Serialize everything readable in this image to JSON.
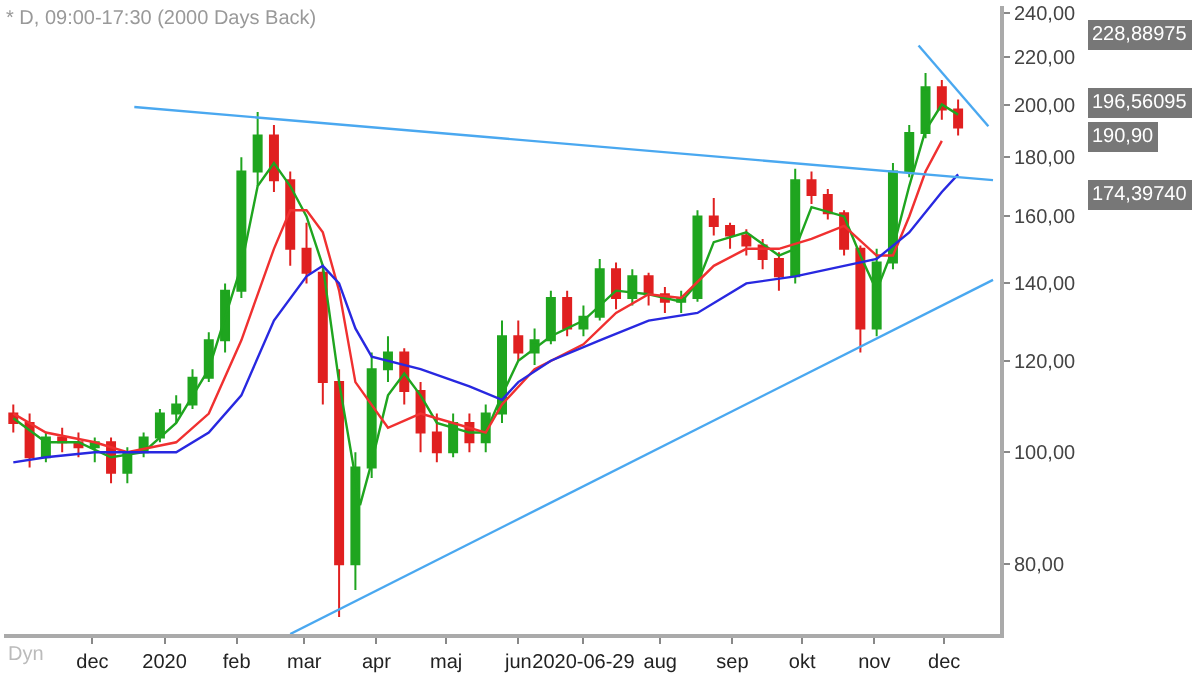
{
  "chart_data": {
    "type": "candlestick",
    "title": "* D, 09:00-17:30 (2000 Days Back)",
    "x": [
      "2019-10-28",
      "2019-11-04",
      "2019-11-11",
      "2019-11-18",
      "2019-11-25",
      "2019-12-02",
      "2019-12-09",
      "2019-12-16",
      "2019-12-23",
      "2019-12-30",
      "2020-01-06",
      "2020-01-13",
      "2020-01-20",
      "2020-01-27",
      "2020-02-03",
      "2020-02-10",
      "2020-02-17",
      "2020-02-24",
      "2020-03-02",
      "2020-03-09",
      "2020-03-16",
      "2020-03-23",
      "2020-03-30",
      "2020-04-06",
      "2020-04-13",
      "2020-04-20",
      "2020-04-27",
      "2020-05-04",
      "2020-05-11",
      "2020-05-18",
      "2020-05-25",
      "2020-06-01",
      "2020-06-08",
      "2020-06-15",
      "2020-06-22",
      "2020-06-29",
      "2020-07-06",
      "2020-07-13",
      "2020-07-20",
      "2020-07-27",
      "2020-08-03",
      "2020-08-10",
      "2020-08-17",
      "2020-08-24",
      "2020-08-31",
      "2020-09-07",
      "2020-09-14",
      "2020-09-21",
      "2020-09-28",
      "2020-10-05",
      "2020-10-12",
      "2020-10-19",
      "2020-10-26",
      "2020-11-02",
      "2020-11-09",
      "2020-11-16",
      "2020-11-23",
      "2020-11-30",
      "2020-12-07"
    ],
    "ohlc": [
      [
        108,
        110,
        104,
        106
      ],
      [
        106,
        108,
        97,
        99
      ],
      [
        99,
        104,
        98,
        103
      ],
      [
        103,
        105,
        100,
        102
      ],
      [
        102,
        104,
        99,
        101
      ],
      [
        101,
        103,
        98,
        102
      ],
      [
        102,
        103,
        94,
        96
      ],
      [
        96,
        101,
        94,
        100
      ],
      [
        100,
        104,
        99,
        103
      ],
      [
        103,
        109,
        102,
        108
      ],
      [
        108,
        112,
        106,
        110
      ],
      [
        110,
        118,
        109,
        116
      ],
      [
        116,
        127,
        115,
        125
      ],
      [
        125,
        140,
        122,
        138
      ],
      [
        138,
        180,
        136,
        175
      ],
      [
        175,
        197,
        170,
        188
      ],
      [
        188,
        192,
        168,
        172
      ],
      [
        172,
        175,
        145,
        150
      ],
      [
        150,
        158,
        140,
        143
      ],
      [
        143,
        145,
        110,
        115
      ],
      [
        115,
        118,
        72,
        80
      ],
      [
        80,
        100,
        76,
        97
      ],
      [
        97,
        122,
        95,
        118
      ],
      [
        118,
        126,
        115,
        122
      ],
      [
        122,
        123,
        110,
        113
      ],
      [
        113,
        115,
        100,
        104
      ],
      [
        104,
        108,
        98,
        100
      ],
      [
        100,
        108,
        99,
        106
      ],
      [
        106,
        108,
        100,
        102
      ],
      [
        102,
        110,
        100,
        108
      ],
      [
        108,
        130,
        106,
        126
      ],
      [
        126,
        130,
        120,
        122
      ],
      [
        122,
        128,
        119,
        125
      ],
      [
        125,
        138,
        124,
        136
      ],
      [
        136,
        138,
        126,
        128
      ],
      [
        128,
        134,
        126,
        131
      ],
      [
        131,
        147,
        130,
        144
      ],
      [
        144,
        146,
        133,
        136
      ],
      [
        136,
        144,
        134,
        142
      ],
      [
        142,
        143,
        134,
        137
      ],
      [
        137,
        139,
        132,
        135
      ],
      [
        135,
        138,
        132,
        136
      ],
      [
        136,
        162,
        135,
        160
      ],
      [
        160,
        166,
        154,
        157
      ],
      [
        157,
        158,
        150,
        154
      ],
      [
        154,
        156,
        148,
        151
      ],
      [
        151,
        153,
        144,
        147
      ],
      [
        147,
        149,
        138,
        142
      ],
      [
        142,
        176,
        140,
        172
      ],
      [
        172,
        175,
        164,
        167
      ],
      [
        167,
        169,
        159,
        161
      ],
      [
        161,
        162,
        148,
        150
      ],
      [
        150,
        151,
        122,
        128
      ],
      [
        128,
        150,
        126,
        146
      ],
      [
        146,
        178,
        144,
        175
      ],
      [
        175,
        192,
        173,
        189
      ],
      [
        189,
        213,
        187,
        207
      ],
      [
        207,
        210,
        194,
        198
      ],
      [
        198,
        202,
        188,
        191
      ]
    ],
    "colors": [
      "#e02020",
      "#e02020",
      "#1fa51f",
      "#e02020",
      "#e02020",
      "#1fa51f",
      "#e02020",
      "#1fa51f",
      "#1fa51f",
      "#1fa51f",
      "#1fa51f",
      "#1fa51f",
      "#1fa51f",
      "#1fa51f",
      "#1fa51f",
      "#1fa51f",
      "#e02020",
      "#e02020",
      "#e02020",
      "#e02020",
      "#e02020",
      "#1fa51f",
      "#1fa51f",
      "#1fa51f",
      "#e02020",
      "#e02020",
      "#e02020",
      "#1fa51f",
      "#e02020",
      "#1fa51f",
      "#1fa51f",
      "#e02020",
      "#1fa51f",
      "#1fa51f",
      "#e02020",
      "#1fa51f",
      "#1fa51f",
      "#e02020",
      "#1fa51f",
      "#e02020",
      "#e02020",
      "#1fa51f",
      "#1fa51f",
      "#e02020",
      "#e02020",
      "#e02020",
      "#e02020",
      "#e02020",
      "#1fa51f",
      "#e02020",
      "#e02020",
      "#e02020",
      "#e02020",
      "#1fa51f",
      "#1fa51f",
      "#1fa51f",
      "#1fa51f",
      "#e02020",
      "#e02020"
    ],
    "series": [
      {
        "type": "line",
        "color": "#1fa51f",
        "x": [
          "2019-10-28",
          "2019-11-11",
          "2019-11-25",
          "2019-12-09",
          "2019-12-23",
          "2020-01-06",
          "2020-01-20",
          "2020-02-03",
          "2020-02-10",
          "2020-02-17",
          "2020-02-24",
          "2020-03-02",
          "2020-03-09",
          "2020-03-16",
          "2020-03-25",
          "2020-03-30",
          "2020-04-06",
          "2020-04-13",
          "2020-04-20",
          "2020-04-27",
          "2020-05-11",
          "2020-05-18",
          "2020-05-25",
          "2020-06-01",
          "2020-06-15",
          "2020-06-29",
          "2020-07-13",
          "2020-07-27",
          "2020-08-10",
          "2020-08-17",
          "2020-08-24",
          "2020-09-07",
          "2020-09-21",
          "2020-09-28",
          "2020-10-05",
          "2020-10-19",
          "2020-10-26",
          "2020-11-02",
          "2020-11-09",
          "2020-11-16",
          "2020-11-23",
          "2020-11-30",
          "2020-12-07"
        ],
        "values": [
          107,
          102,
          102,
          99,
          100,
          106,
          118,
          145,
          170,
          178,
          170,
          160,
          145,
          115,
          90,
          98,
          112,
          117,
          112,
          106,
          104,
          104,
          112,
          120,
          126,
          130,
          138,
          137,
          135,
          140,
          152,
          155,
          148,
          150,
          163,
          160,
          148,
          138,
          150,
          170,
          190,
          200,
          196
        ]
      },
      {
        "type": "line",
        "color": "#f03030",
        "x": [
          "2019-10-28",
          "2019-11-11",
          "2019-12-02",
          "2019-12-16",
          "2020-01-06",
          "2020-01-20",
          "2020-02-03",
          "2020-02-17",
          "2020-02-24",
          "2020-03-02",
          "2020-03-09",
          "2020-03-16",
          "2020-03-23",
          "2020-04-06",
          "2020-04-20",
          "2020-05-04",
          "2020-05-18",
          "2020-05-25",
          "2020-06-08",
          "2020-06-29",
          "2020-07-13",
          "2020-07-27",
          "2020-08-10",
          "2020-08-24",
          "2020-09-07",
          "2020-09-21",
          "2020-10-05",
          "2020-10-19",
          "2020-11-02",
          "2020-11-09",
          "2020-11-16",
          "2020-11-23",
          "2020-11-30"
        ],
        "values": [
          108,
          104,
          102,
          100,
          102,
          108,
          125,
          150,
          162,
          162,
          155,
          138,
          115,
          105,
          108,
          106,
          104,
          110,
          118,
          124,
          132,
          137,
          136,
          145,
          150,
          150,
          153,
          157,
          148,
          148,
          160,
          175,
          186
        ]
      },
      {
        "type": "line",
        "color": "#2828e0",
        "x": [
          "2019-10-28",
          "2019-11-11",
          "2019-12-02",
          "2020-01-06",
          "2020-01-20",
          "2020-02-03",
          "2020-02-17",
          "2020-03-02",
          "2020-03-09",
          "2020-03-16",
          "2020-03-23",
          "2020-03-30",
          "2020-04-20",
          "2020-05-11",
          "2020-05-25",
          "2020-06-01",
          "2020-06-15",
          "2020-07-06",
          "2020-07-27",
          "2020-08-17",
          "2020-09-07",
          "2020-09-28",
          "2020-10-19",
          "2020-11-02",
          "2020-11-16",
          "2020-11-30",
          "2020-12-07"
        ],
        "values": [
          98,
          99,
          100,
          100,
          104,
          112,
          130,
          142,
          145,
          140,
          128,
          121,
          118,
          114,
          111,
          115,
          120,
          125,
          130,
          132,
          140,
          142,
          145,
          147,
          155,
          168,
          174
        ]
      },
      {
        "type": "line",
        "color": "#4aa8f0",
        "x": [
          "2019-12-19",
          "2020-12-22"
        ],
        "values": [
          199,
          172
        ]
      },
      {
        "type": "line",
        "color": "#4aa8f0",
        "x": [
          "2020-02-24",
          "2020-12-22"
        ],
        "values": [
          69.6,
          141
        ]
      },
      {
        "type": "line",
        "color": "#4aa8f0",
        "x": [
          "2020-11-20",
          "2020-12-20"
        ],
        "values": [
          225,
          191.5
        ]
      }
    ],
    "xlim": [
      "2019-10-24",
      "2020-12-25"
    ],
    "xticks": [
      {
        "value": "2019-12-01",
        "label": "dec"
      },
      {
        "value": "2020-01-01",
        "label": "2020"
      },
      {
        "value": "2020-02-01",
        "label": "feb"
      },
      {
        "value": "2020-03-01",
        "label": "mar"
      },
      {
        "value": "2020-04-01",
        "label": "apr"
      },
      {
        "value": "2020-05-01",
        "label": "maj"
      },
      {
        "value": "2020-06-01",
        "label": "jun"
      },
      {
        "value": "2020-06-29",
        "label": "2020-06-29"
      },
      {
        "value": "2020-08-01",
        "label": "aug"
      },
      {
        "value": "2020-09-01",
        "label": "sep"
      },
      {
        "value": "2020-10-01",
        "label": "okt"
      },
      {
        "value": "2020-11-01",
        "label": "nov"
      },
      {
        "value": "2020-12-01",
        "label": "dec"
      }
    ],
    "ylim": [
      69.6,
      243.4
    ],
    "log": true,
    "yticks": [
      {
        "value": 80,
        "label": "80,00"
      },
      {
        "value": 100,
        "label": "100,00"
      },
      {
        "value": 120,
        "label": "120,00"
      },
      {
        "value": 140,
        "label": "140,00"
      },
      {
        "value": 160,
        "label": "160,00"
      },
      {
        "value": 180,
        "label": "180,00"
      },
      {
        "value": 200,
        "label": "200,00"
      },
      {
        "value": 220,
        "label": "220,00"
      },
      {
        "value": 240,
        "label": "240,00"
      }
    ],
    "annotations": [
      "228,88975",
      "196,56095",
      "190,90",
      "174,39740",
      "Dyn"
    ]
  }
}
